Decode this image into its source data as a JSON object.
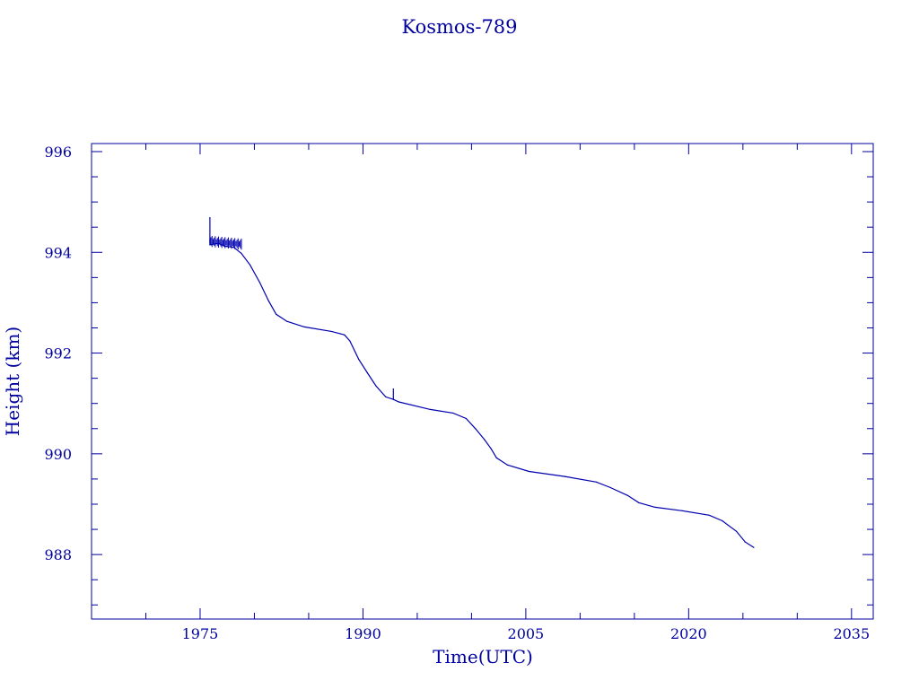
{
  "chart_data": {
    "type": "line",
    "title": "Kosmos-789",
    "xlabel": "Time(UTC)",
    "ylabel": "Height (km)",
    "xlim": [
      1965,
      2037
    ],
    "ylim": [
      986.72,
      996.16
    ],
    "x_ticks": [
      1975,
      1990,
      2005,
      2020,
      2035
    ],
    "y_ticks": [
      988,
      990,
      992,
      994,
      996
    ],
    "x_minor_step": 5,
    "y_minor_step": 0.5,
    "grid": false,
    "color": "#0000b0",
    "axis_color": "#0000a0",
    "series": [
      {
        "name": "Height",
        "x": [
          1975.9,
          1975.9,
          1975.9,
          1976.7,
          1977.3,
          1978.1,
          1978.8,
          1979.6,
          1980.5,
          1981.3,
          1982.0,
          1983.0,
          1984.6,
          1987.1,
          1988.3,
          1988.8,
          1989.6,
          1990.4,
          1991.2,
          1992.1,
          1992.8,
          1992.8,
          1992.8,
          1993.3,
          1996.2,
          1998.3,
          1999.5,
          2000.4,
          2001.2,
          2001.8,
          2002.3,
          2003.3,
          2005.3,
          2008.6,
          2011.5,
          2012.8,
          2014.4,
          2015.4,
          2016.9,
          2019.4,
          2021.9,
          2023.1,
          2024.4,
          2025.2,
          2026.0
        ],
        "y": [
          994.69,
          994.2,
          994.15,
          994.18,
          994.12,
          994.1,
          993.98,
          993.75,
          993.4,
          993.04,
          992.77,
          992.63,
          992.52,
          992.43,
          992.36,
          992.24,
          991.88,
          991.61,
          991.35,
          991.13,
          991.08,
          991.29,
          991.08,
          991.03,
          990.88,
          990.81,
          990.7,
          990.49,
          990.28,
          990.1,
          989.92,
          989.78,
          989.65,
          989.55,
          989.44,
          989.33,
          989.17,
          989.03,
          988.94,
          988.87,
          988.78,
          988.67,
          988.46,
          988.25,
          988.14
        ]
      }
    ]
  }
}
